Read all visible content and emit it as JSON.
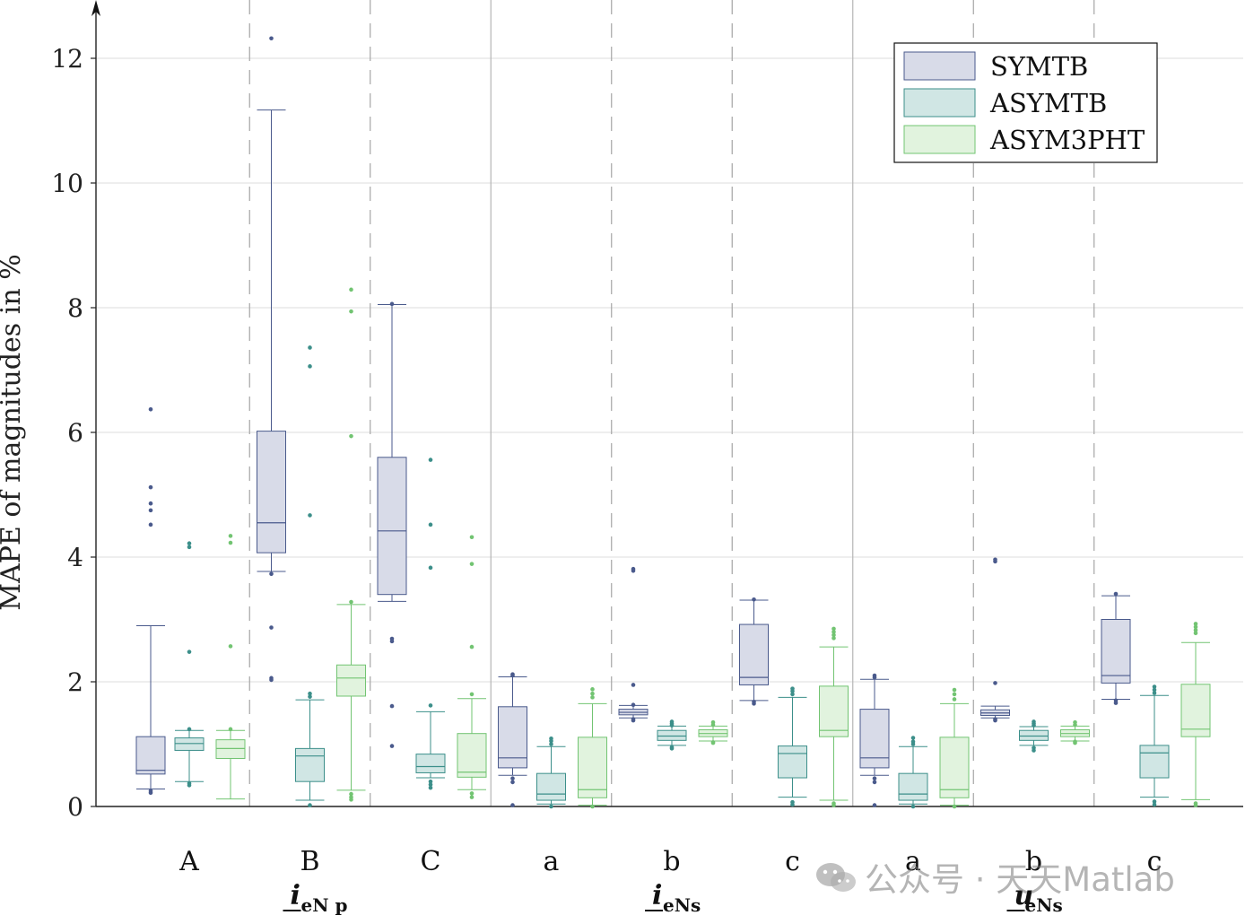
{
  "chart_data": {
    "type": "box",
    "ylabel": "MAPE of magnitudes in %",
    "ylim": [
      0,
      12.6
    ],
    "yticks": [
      0,
      2,
      4,
      6,
      8,
      10,
      12
    ],
    "grid": true,
    "legend_position": "top-right",
    "series": [
      {
        "name": "SYMTB",
        "fill": "#d8dbe8",
        "stroke": "#4a5a8c"
      },
      {
        "name": "ASYMTB",
        "fill": "#d0e6e4",
        "stroke": "#3c8f8a"
      },
      {
        "name": "ASYM3PHT",
        "fill": "#e1f3de",
        "stroke": "#72c472"
      }
    ],
    "categories": [
      "A",
      "B",
      "C",
      "a",
      "b",
      "c",
      "a",
      "b",
      "c"
    ],
    "group_labels": [
      {
        "text": "i",
        "sub": "eN p"
      },
      {
        "text": "i",
        "sub": "eNs"
      },
      {
        "text": "u",
        "sub": "eNs"
      }
    ],
    "boxes": [
      [
        {
          "wlo": 0.28,
          "q1": 0.52,
          "med": 0.58,
          "q3": 1.12,
          "whi": 2.9,
          "out": [
            0.22,
            0.25,
            4.52,
            4.75,
            4.86,
            5.12,
            6.37
          ]
        },
        {
          "wlo": 0.4,
          "q1": 0.9,
          "med": 1.01,
          "q3": 1.1,
          "whi": 1.22,
          "out": [
            0.34,
            0.37,
            1.24,
            2.48,
            4.16,
            4.22
          ]
        },
        {
          "wlo": 0.12,
          "q1": 0.77,
          "med": 0.93,
          "q3": 1.07,
          "whi": 1.22,
          "out": [
            1.24,
            2.57,
            4.23,
            4.34
          ]
        }
      ],
      [
        {
          "wlo": 3.77,
          "q1": 4.07,
          "med": 4.55,
          "q3": 6.02,
          "whi": 11.17,
          "out": [
            2.03,
            2.06,
            2.87,
            3.73,
            12.32
          ]
        },
        {
          "wlo": 0.1,
          "q1": 0.4,
          "med": 0.81,
          "q3": 0.93,
          "whi": 1.71,
          "out": [
            0.02,
            1.76,
            1.81,
            4.67,
            7.06,
            7.36
          ]
        },
        {
          "wlo": 0.26,
          "q1": 1.77,
          "med": 2.06,
          "q3": 2.27,
          "whi": 3.24,
          "out": [
            0.11,
            0.15,
            0.2,
            3.28,
            5.94,
            7.94,
            8.29
          ]
        }
      ],
      [
        {
          "wlo": 3.29,
          "q1": 3.4,
          "med": 4.42,
          "q3": 5.6,
          "whi": 8.05,
          "out": [
            0.97,
            1.61,
            2.65,
            2.69,
            8.06
          ]
        },
        {
          "wlo": 0.46,
          "q1": 0.54,
          "med": 0.64,
          "q3": 0.84,
          "whi": 1.52,
          "out": [
            0.3,
            0.35,
            0.4,
            1.62,
            3.83,
            4.52,
            5.56
          ]
        },
        {
          "wlo": 0.27,
          "q1": 0.47,
          "med": 0.55,
          "q3": 1.17,
          "whi": 1.73,
          "out": [
            0.15,
            0.21,
            1.8,
            2.56,
            3.89,
            4.32
          ]
        }
      ],
      [
        {
          "wlo": 0.5,
          "q1": 0.62,
          "med": 0.78,
          "q3": 1.6,
          "whi": 2.08,
          "out": [
            0.02,
            0.39,
            0.45,
            2.1,
            2.12
          ]
        },
        {
          "wlo": 0.04,
          "q1": 0.1,
          "med": 0.2,
          "q3": 0.53,
          "whi": 0.96,
          "out": [
            0.0,
            1.0,
            1.05,
            1.09
          ]
        },
        {
          "wlo": 0.02,
          "q1": 0.14,
          "med": 0.27,
          "q3": 1.11,
          "whi": 1.65,
          "out": [
            0.0,
            1.75,
            1.81,
            1.88
          ]
        }
      ],
      [
        {
          "wlo": 1.42,
          "q1": 1.47,
          "med": 1.51,
          "q3": 1.56,
          "whi": 1.62,
          "out": [
            1.38,
            1.4,
            1.63,
            1.95,
            3.78,
            3.81
          ]
        },
        {
          "wlo": 0.98,
          "q1": 1.06,
          "med": 1.13,
          "q3": 1.22,
          "whi": 1.29,
          "out": [
            0.93,
            0.95,
            1.3,
            1.33,
            1.36
          ]
        },
        {
          "wlo": 1.05,
          "q1": 1.12,
          "med": 1.17,
          "q3": 1.23,
          "whi": 1.29,
          "out": [
            1.02,
            1.03,
            1.31,
            1.35
          ]
        }
      ],
      [
        {
          "wlo": 1.7,
          "q1": 1.95,
          "med": 2.07,
          "q3": 2.92,
          "whi": 3.31,
          "out": [
            1.65,
            1.68,
            3.32
          ]
        },
        {
          "wlo": 0.15,
          "q1": 0.46,
          "med": 0.85,
          "q3": 0.97,
          "whi": 1.75,
          "out": [
            0.03,
            0.07,
            1.8,
            1.85,
            1.89
          ]
        },
        {
          "wlo": 0.1,
          "q1": 1.12,
          "med": 1.22,
          "q3": 1.93,
          "whi": 2.56,
          "out": [
            0.02,
            0.05,
            2.7,
            2.75,
            2.8,
            2.85
          ]
        }
      ],
      [
        {
          "wlo": 0.5,
          "q1": 0.62,
          "med": 0.78,
          "q3": 1.56,
          "whi": 2.04,
          "out": [
            0.02,
            0.39,
            0.45,
            2.07,
            2.1
          ]
        },
        {
          "wlo": 0.04,
          "q1": 0.1,
          "med": 0.2,
          "q3": 0.53,
          "whi": 0.96,
          "out": [
            0.0,
            1.0,
            1.04,
            1.1
          ]
        },
        {
          "wlo": 0.02,
          "q1": 0.14,
          "med": 0.27,
          "q3": 1.11,
          "whi": 1.65,
          "out": [
            0.0,
            1.72,
            1.8,
            1.87
          ]
        }
      ],
      [
        {
          "wlo": 1.42,
          "q1": 1.46,
          "med": 1.5,
          "q3": 1.55,
          "whi": 1.61,
          "out": [
            1.38,
            1.4,
            1.98,
            3.93,
            3.96
          ]
        },
        {
          "wlo": 0.98,
          "q1": 1.06,
          "med": 1.13,
          "q3": 1.22,
          "whi": 1.28,
          "out": [
            0.9,
            0.94,
            1.3,
            1.33,
            1.36
          ]
        },
        {
          "wlo": 1.05,
          "q1": 1.12,
          "med": 1.17,
          "q3": 1.23,
          "whi": 1.29,
          "out": [
            1.02,
            1.04,
            1.31,
            1.35
          ]
        }
      ],
      [
        {
          "wlo": 1.72,
          "q1": 1.98,
          "med": 2.1,
          "q3": 3.0,
          "whi": 3.38,
          "out": [
            1.66,
            1.7,
            3.41
          ]
        },
        {
          "wlo": 0.15,
          "q1": 0.46,
          "med": 0.86,
          "q3": 0.98,
          "whi": 1.78,
          "out": [
            0.03,
            0.08,
            1.82,
            1.87,
            1.92
          ]
        },
        {
          "wlo": 0.11,
          "q1": 1.12,
          "med": 1.24,
          "q3": 1.96,
          "whi": 2.63,
          "out": [
            0.02,
            0.05,
            2.78,
            2.83,
            2.88,
            2.93
          ]
        }
      ]
    ]
  },
  "watermark": "公众号 · 天天Matlab"
}
